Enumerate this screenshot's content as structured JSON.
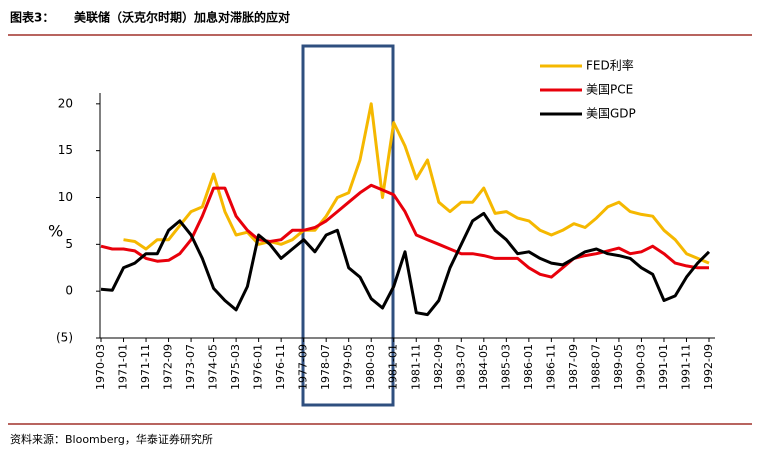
{
  "chart_data": {
    "type": "line",
    "figure_label": "图表3：",
    "title": "美联储（沃克尔时期）加息对滞胀的应对",
    "source": "资料来源：Bloomberg，华泰证券研究所",
    "y_label": "%",
    "categories": [
      "1970-03",
      null,
      "1971-01",
      null,
      "1971-11",
      null,
      "1972-09",
      null,
      "1973-07",
      null,
      "1974-05",
      null,
      "1975-03",
      null,
      "1976-01",
      null,
      "1976-11",
      null,
      "1977-09",
      null,
      "1978-07",
      null,
      "1979-05",
      null,
      "1980-03",
      null,
      "1981-01",
      null,
      "1981-11",
      null,
      "1982-09",
      null,
      "1983-07",
      null,
      "1984-05",
      null,
      "1985-03",
      null,
      "1986-01",
      null,
      "1986-11",
      null,
      "1987-09",
      null,
      "1988-07",
      null,
      "1989-05",
      null,
      "1990-03",
      null,
      "1991-01",
      null,
      "1991-11",
      null,
      "1992-09"
    ],
    "series": [
      {
        "name": "FED利率",
        "color": "#f5b800",
        "values": [
          null,
          null,
          5.5,
          5.3,
          4.5,
          5.5,
          5.5,
          7,
          8.5,
          9,
          12.5,
          8.5,
          6,
          6.3,
          5,
          5.3,
          5,
          5.5,
          6.5,
          6.5,
          8,
          10,
          10.5,
          14,
          20,
          10,
          18,
          15.5,
          12,
          14,
          9.5,
          8.5,
          9.5,
          9.5,
          11,
          8.3,
          8.5,
          7.8,
          7.5,
          6.5,
          6,
          6.5,
          7.2,
          6.8,
          7.8,
          9,
          9.5,
          8.5,
          8.2,
          8,
          6.5,
          5.5,
          4,
          3.5,
          3
        ]
      },
      {
        "name": "美国PCE",
        "color": "#e8000b",
        "values": [
          4.8,
          4.5,
          4.5,
          4.3,
          3.5,
          3.2,
          3.3,
          4,
          5.5,
          8,
          11,
          11,
          8,
          6.5,
          5.5,
          5.3,
          5.5,
          6.5,
          6.5,
          6.8,
          7.5,
          8.5,
          9.5,
          10.5,
          11.3,
          10.8,
          10.3,
          8.5,
          6,
          5.5,
          5,
          4.5,
          4,
          4,
          3.8,
          3.5,
          3.5,
          3.5,
          2.5,
          1.8,
          1.5,
          2.5,
          3.5,
          3.8,
          4,
          4.3,
          4.6,
          4,
          4.2,
          4.8,
          4,
          3,
          2.7,
          2.5,
          2.5
        ]
      },
      {
        "name": "美国GDP",
        "color": "#000000",
        "values": [
          0.2,
          0.1,
          2.5,
          3,
          4,
          4,
          6.5,
          7.5,
          6,
          3.5,
          0.3,
          -1,
          -2,
          0.5,
          6,
          5,
          3.5,
          4.5,
          5.5,
          4.2,
          6,
          6.5,
          2.5,
          1.5,
          -0.8,
          -1.8,
          0.5,
          4.2,
          -2.3,
          -2.5,
          -1,
          2.5,
          5,
          7.5,
          8.3,
          6.5,
          5.5,
          4,
          4.2,
          3.5,
          3,
          2.8,
          3.5,
          4.2,
          4.5,
          4,
          3.8,
          3.5,
          2.5,
          1.8,
          -1,
          -0.5,
          1.5,
          3,
          4.2
        ]
      }
    ],
    "ylim": [
      -5,
      25
    ],
    "yticks": [
      20,
      15,
      10,
      5,
      0,
      {
        "value": -5,
        "label": "(5)"
      }
    ],
    "negative_tick_color": "#e8000b",
    "legend": "upper right"
  }
}
